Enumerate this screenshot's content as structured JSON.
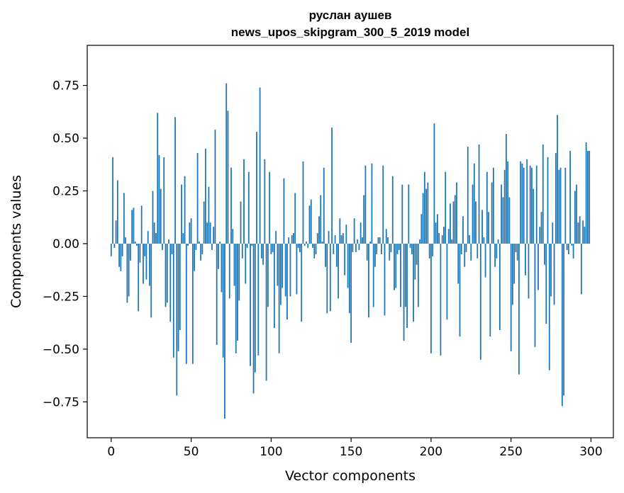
{
  "chart_data": {
    "type": "bar",
    "title_line1": "руслан аушев",
    "title_line2": "news_upos_skipgram_300_5_2019 model",
    "xlabel": "Vector components",
    "ylabel": "Components values",
    "xlim": [
      -15,
      314
    ],
    "ylim": [
      -0.92,
      0.94
    ],
    "x_ticks": [
      0,
      50,
      100,
      150,
      200,
      250,
      300
    ],
    "y_ticks": [
      0.75,
      0.5,
      0.25,
      0.0,
      -0.25,
      -0.5,
      -0.75
    ],
    "x_tick_labels": [
      "0",
      "50",
      "100",
      "150",
      "200",
      "250",
      "300"
    ],
    "y_tick_labels": [
      "0.75",
      "0.50",
      "0.25",
      "0.00",
      "−0.25",
      "−0.50",
      "−0.75"
    ],
    "bar_color": "#1f77b4",
    "values": [
      -0.06,
      0.41,
      -0.02,
      0.11,
      0.3,
      -0.11,
      -0.13,
      -0.06,
      0.24,
      0.03,
      -0.28,
      -0.25,
      -0.08,
      0.16,
      0.17,
      0.01,
      -0.01,
      -0.32,
      -0.09,
      0.18,
      -0.19,
      -0.06,
      -0.17,
      0.06,
      -0.2,
      -0.35,
      0.25,
      0.1,
      0.05,
      0.62,
      0.42,
      0.26,
      -0.03,
      0.41,
      -0.3,
      -0.28,
      0.02,
      -0.37,
      -0.05,
      -0.54,
      0.6,
      -0.72,
      -0.51,
      -0.41,
      0.28,
      0.05,
      0.32,
      -0.57,
      -0.01,
      0.1,
      0.12,
      -0.57,
      -0.13,
      -0.03,
      0.43,
      0.01,
      -0.08,
      -0.05,
      0.2,
      0.45,
      0.1,
      0.27,
      0.1,
      -0.03,
      0.08,
      0.54,
      -0.48,
      -0.12,
      0.01,
      -0.23,
      -0.54,
      -0.83,
      0.76,
      0.63,
      -0.26,
      0.36,
      0.07,
      -0.2,
      -0.52,
      -0.46,
      -0.27,
      0.2,
      -0.07,
      0.4,
      -0.19,
      -0.02,
      0.34,
      -0.58,
      -0.01,
      -0.71,
      -0.61,
      0.53,
      -0.53,
      0.74,
      -0.07,
      -0.1,
      0.4,
      -0.65,
      -0.3,
      0.34,
      -0.05,
      -0.04,
      -0.4,
      0.06,
      -0.2,
      -0.52,
      -0.29,
      -0.21,
      0.31,
      -0.25,
      -0.36,
      0.03,
      -0.25,
      0.04,
      0.05,
      0.24,
      -0.24,
      -0.02,
      -0.04,
      -0.37,
      0.39,
      -0.01,
      0.01,
      -0.02,
      0.18,
      0.21,
      -0.02,
      -0.07,
      -0.05,
      0.05,
      0.13,
      0.23,
      0.01,
      0.36,
      -0.11,
      -0.33,
      0.06,
      -0.32,
      0.55,
      -0.05,
      0.04,
      -0.11,
      -0.26,
      0.12,
      0.04,
      0.05,
      -0.15,
      0.09,
      -0.21,
      -0.33,
      -0.47,
      -0.04,
      0.12,
      -0.04,
      0.02,
      -0.03,
      0.1,
      0.03,
      0.23,
      0.37,
      -0.08,
      -0.35,
      0.01,
      0.38,
      -0.3,
      -0.11,
      -0.05,
      0.03,
      0.03,
      -0.05,
      0.37,
      -0.34,
      0.07,
      0.03,
      -0.08,
      -0.04,
      0.32,
      -0.22,
      -0.21,
      -0.05,
      -0.03,
      -0.3,
      0.28,
      -0.46,
      -0.3,
      -0.4,
      0.28,
      -0.02,
      -0.05,
      -0.37,
      -0.17,
      -0.1,
      -0.3,
      0.02,
      0.14,
      0.24,
      0.34,
      0.26,
      0.29,
      -0.07,
      -0.52,
      -0.06,
      0.57,
      0.1,
      0.14,
      0.05,
      -0.53,
      0.04,
      0.08,
      0.34,
      -0.36,
      0.07,
      0.19,
      0.02,
      0.2,
      0.23,
      0.29,
      -0.19,
      -0.44,
      -0.05,
      0.13,
      -0.11,
      -0.04,
      0.46,
      0.04,
      -0.08,
      0.28,
      0.38,
      0.2,
      -0.07,
      0.47,
      -0.55,
      0.16,
      0.03,
      -0.16,
      0.34,
      0.15,
      -0.44,
      0.29,
      0.36,
      -0.11,
      -0.07,
      0.02,
      -0.41,
      0.28,
      0.22,
      0.35,
      0.52,
      0.39,
      0.22,
      -0.51,
      -0.29,
      -0.19,
      -0.04,
      -0.08,
      -0.62,
      0.39,
      0.38,
      0.36,
      -0.15,
      0.4,
      -0.26,
      0.37,
      0.36,
      0.26,
      -0.49,
      0.37,
      -0.22,
      0.08,
      0.15,
      0.47,
      -0.1,
      -0.38,
      0.41,
      -0.6,
      -0.25,
      0.1,
      -0.29,
      0.43,
      0.61,
      0.35,
      0.36,
      -0.77,
      -0.72,
      0.36,
      -0.03,
      -0.05,
      0.44,
      -0.01,
      -0.07,
      0.25,
      0.28,
      0.1,
      0.13,
      -0.24,
      0.11,
      0.08,
      0.48,
      0.44,
      0.44
    ]
  }
}
